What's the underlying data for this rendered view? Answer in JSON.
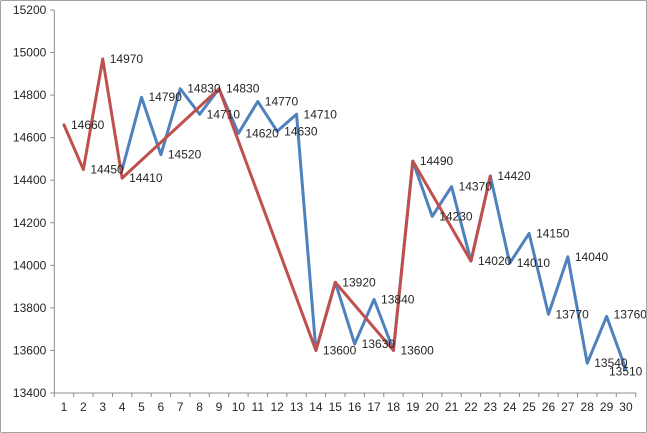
{
  "chart": {
    "background": "#ffffff",
    "frame_border_color": "#a3a3a3",
    "axis_color": "#8c8c8c",
    "text_color": "#262626"
  },
  "chart_data": {
    "type": "line",
    "title": "",
    "xlabel": "",
    "ylabel": "",
    "grid": false,
    "legend": "none",
    "ylim": [
      13400,
      15200
    ],
    "ytick_step": 200,
    "y_ticks": [
      13400,
      13600,
      13800,
      14000,
      14200,
      14400,
      14600,
      14800,
      15000,
      15200
    ],
    "x_ticks": [
      1,
      2,
      3,
      4,
      5,
      6,
      7,
      8,
      9,
      10,
      11,
      12,
      13,
      14,
      15,
      16,
      17,
      18,
      19,
      20,
      21,
      22,
      23,
      24,
      25,
      26,
      27,
      28,
      29,
      30
    ],
    "series": [
      {
        "name": "series-blue",
        "color": "#4f81bd",
        "values": [
          null,
          null,
          null,
          14450,
          14790,
          14520,
          14830,
          14710,
          14830,
          14620,
          14770,
          14630,
          14710,
          13600,
          13920,
          13630,
          13840,
          13600,
          14490,
          14230,
          14370,
          14020,
          14420,
          14010,
          14150,
          13770,
          14040,
          13540,
          13760,
          13510
        ]
      },
      {
        "name": "series-red",
        "color": "#c0504d",
        "values": [
          14660,
          14450,
          14970,
          14410,
          null,
          null,
          null,
          null,
          14830,
          null,
          null,
          null,
          null,
          13600,
          13920,
          null,
          null,
          13600,
          14490,
          null,
          null,
          14020,
          14420,
          null,
          null,
          null,
          null,
          null,
          null,
          null
        ]
      }
    ],
    "point_labels": [
      {
        "x": 1,
        "text": "14660",
        "value": 14660,
        "series": "red"
      },
      {
        "x": 2,
        "text": "14450",
        "value": 14450,
        "series": "red"
      },
      {
        "x": 3,
        "text": "14970",
        "value": 14970,
        "series": "red"
      },
      {
        "x": 4,
        "text": "14410",
        "value": 14410,
        "series": "red"
      },
      {
        "x": 5,
        "text": "14790",
        "value": 14790,
        "series": "blue"
      },
      {
        "x": 6,
        "text": "14520",
        "value": 14520,
        "series": "blue"
      },
      {
        "x": 7,
        "text": "14830",
        "value": 14830,
        "series": "blue"
      },
      {
        "x": 8,
        "text": "14710",
        "value": 14710,
        "series": "blue"
      },
      {
        "x": 9,
        "text": "14830",
        "value": 14830,
        "series": "blue"
      },
      {
        "x": 10,
        "text": "14620",
        "value": 14620,
        "series": "blue"
      },
      {
        "x": 11,
        "text": "14770",
        "value": 14770,
        "series": "blue"
      },
      {
        "x": 12,
        "text": "14630",
        "value": 14630,
        "series": "blue"
      },
      {
        "x": 13,
        "text": "14710",
        "value": 14710,
        "series": "blue"
      },
      {
        "x": 14,
        "text": "13600",
        "value": 13600,
        "series": "blue"
      },
      {
        "x": 15,
        "text": "13920",
        "value": 13920,
        "series": "blue"
      },
      {
        "x": 16,
        "text": "13630",
        "value": 13630,
        "series": "blue"
      },
      {
        "x": 17,
        "text": "13840",
        "value": 13840,
        "series": "blue"
      },
      {
        "x": 18,
        "text": "13600",
        "value": 13600,
        "series": "red"
      },
      {
        "x": 19,
        "text": "14490",
        "value": 14490,
        "series": "red"
      },
      {
        "x": 20,
        "text": "14230",
        "value": 14230,
        "series": "blue"
      },
      {
        "x": 21,
        "text": "14370",
        "value": 14370,
        "series": "blue"
      },
      {
        "x": 22,
        "text": "14020",
        "value": 14020,
        "series": "red"
      },
      {
        "x": 23,
        "text": "14420",
        "value": 14420,
        "series": "red"
      },
      {
        "x": 24,
        "text": "14010",
        "value": 14010,
        "series": "blue"
      },
      {
        "x": 25,
        "text": "14150",
        "value": 14150,
        "series": "blue"
      },
      {
        "x": 26,
        "text": "13770",
        "value": 13770,
        "series": "blue"
      },
      {
        "x": 27,
        "text": "14040",
        "value": 14040,
        "series": "blue"
      },
      {
        "x": 28,
        "text": "13540",
        "value": 13540,
        "series": "blue"
      },
      {
        "x": 29,
        "text": "13760",
        "value": 13760,
        "series": "blue",
        "dy": -2
      },
      {
        "x": 30,
        "text": "13510",
        "value": 13510,
        "series": "blue",
        "dx": -24,
        "dy": 2
      }
    ]
  }
}
